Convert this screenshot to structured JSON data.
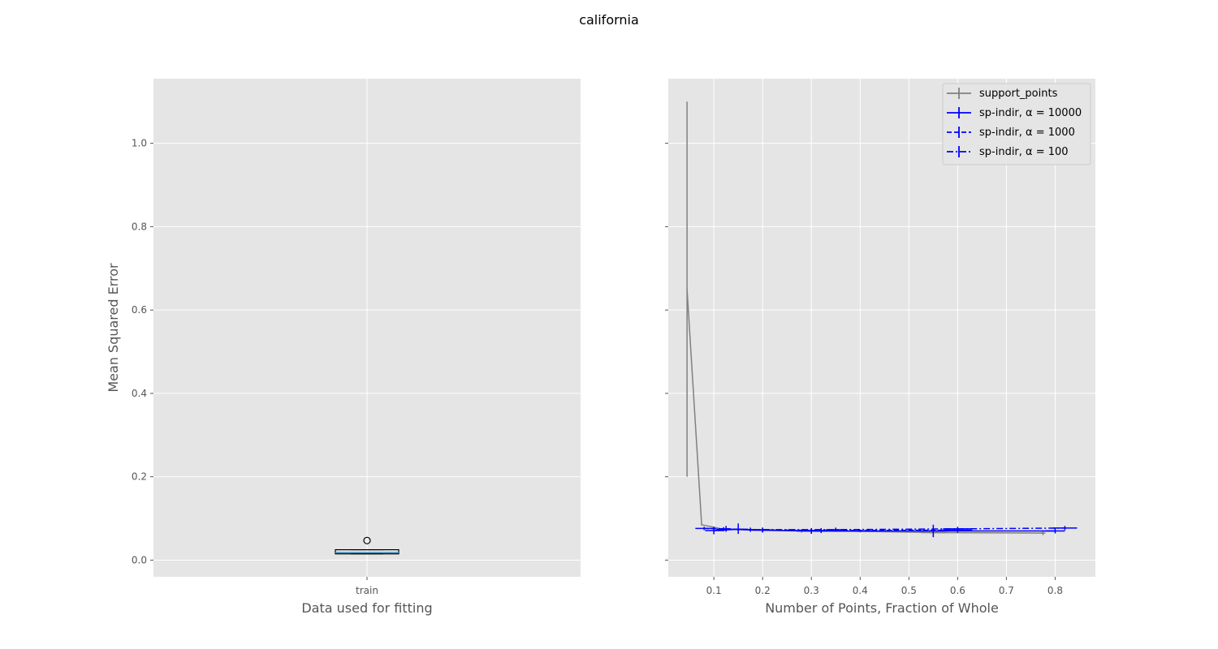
{
  "title": "california",
  "chart_data": [
    {
      "type": "box",
      "xlabel": "Data used for fitting",
      "ylabel": "Mean Squared Error",
      "ylim": [
        -0.04,
        1.155
      ],
      "yticks": [
        0.0,
        0.2,
        0.4,
        0.6,
        0.8,
        1.0
      ],
      "ytick_labels": [
        "0.0",
        "0.2",
        "0.4",
        "0.6",
        "0.8",
        "1.0"
      ],
      "categories": [
        "train"
      ],
      "boxes": [
        {
          "label": "train",
          "whisker_low": 0.015,
          "q1": 0.015,
          "median": 0.018,
          "q3": 0.025,
          "whisker_high": 0.025,
          "outliers": [
            0.047
          ]
        }
      ],
      "grid": true
    },
    {
      "type": "line",
      "xlabel": "Number of Points, Fraction of Whole",
      "xlim": [
        0.0065,
        0.8825
      ],
      "xticks": [
        0.1,
        0.2,
        0.3,
        0.4,
        0.5,
        0.6,
        0.7,
        0.8
      ],
      "xtick_labels": [
        "0.1",
        "0.2",
        "0.3",
        "0.4",
        "0.5",
        "0.6",
        "0.7",
        "0.8"
      ],
      "ylim": [
        -0.04,
        1.155
      ],
      "sharey": true,
      "grid": true,
      "legend_position": "top-right",
      "series": [
        {
          "name": "support_points",
          "color": "#808080",
          "dash": "solid",
          "points": [
            {
              "x": 0.045,
              "y": 0.65,
              "ylo": 0.2,
              "yhi": 1.1,
              "xlo": 0.045,
              "xhi": 0.045
            },
            {
              "x": 0.075,
              "y": 0.085,
              "ylo": 0.083,
              "yhi": 0.087,
              "xlo": 0.075,
              "xhi": 0.075
            },
            {
              "x": 0.12,
              "y": 0.074,
              "ylo": 0.072,
              "yhi": 0.076,
              "xlo": 0.11,
              "xhi": 0.13
            },
            {
              "x": 0.18,
              "y": 0.072,
              "ylo": 0.07,
              "yhi": 0.074,
              "xlo": 0.17,
              "xhi": 0.19
            },
            {
              "x": 0.28,
              "y": 0.07,
              "ylo": 0.066,
              "yhi": 0.074,
              "xlo": 0.27,
              "xhi": 0.29
            },
            {
              "x": 0.4,
              "y": 0.069,
              "ylo": 0.066,
              "yhi": 0.072,
              "xlo": 0.39,
              "xhi": 0.41
            },
            {
              "x": 0.55,
              "y": 0.066,
              "ylo": 0.06,
              "yhi": 0.072,
              "xlo": 0.525,
              "xhi": 0.575
            },
            {
              "x": 0.775,
              "y": 0.065,
              "ylo": 0.06,
              "yhi": 0.07,
              "xlo": 0.77,
              "xhi": 0.78
            }
          ]
        },
        {
          "name": "sp-indir, α = 10000",
          "color": "#0000ff",
          "dash": "solid",
          "points": [
            {
              "x": 0.1,
              "y": 0.071,
              "ylo": 0.062,
              "yhi": 0.08,
              "xlo": 0.082,
              "xhi": 0.118
            },
            {
              "x": 0.15,
              "y": 0.074,
              "ylo": 0.063,
              "yhi": 0.088,
              "xlo": 0.13,
              "xhi": 0.17
            },
            {
              "x": 0.2,
              "y": 0.072,
              "ylo": 0.066,
              "yhi": 0.078,
              "xlo": 0.18,
              "xhi": 0.22
            },
            {
              "x": 0.3,
              "y": 0.07,
              "ylo": 0.063,
              "yhi": 0.077,
              "xlo": 0.27,
              "xhi": 0.33
            },
            {
              "x": 0.55,
              "y": 0.07,
              "ylo": 0.055,
              "yhi": 0.085,
              "xlo": 0.52,
              "xhi": 0.58
            },
            {
              "x": 0.8,
              "y": 0.07,
              "ylo": 0.064,
              "yhi": 0.076,
              "xlo": 0.78,
              "xhi": 0.82
            }
          ]
        },
        {
          "name": "sp-indir, α = 1000",
          "color": "#0000ff",
          "dash": "dashed",
          "points": [
            {
              "x": 0.08,
              "y": 0.076,
              "ylo": 0.072,
              "yhi": 0.08,
              "xlo": 0.062,
              "xhi": 0.098
            },
            {
              "x": 0.125,
              "y": 0.075,
              "ylo": 0.068,
              "yhi": 0.082,
              "xlo": 0.115,
              "xhi": 0.135
            },
            {
              "x": 0.175,
              "y": 0.073,
              "ylo": 0.068,
              "yhi": 0.078,
              "xlo": 0.16,
              "xhi": 0.19
            },
            {
              "x": 0.32,
              "y": 0.071,
              "ylo": 0.065,
              "yhi": 0.077,
              "xlo": 0.3,
              "xhi": 0.34
            },
            {
              "x": 0.6,
              "y": 0.072,
              "ylo": 0.066,
              "yhi": 0.078,
              "xlo": 0.57,
              "xhi": 0.63
            }
          ]
        },
        {
          "name": "sp-indir, α = 100",
          "color": "#0000ff",
          "dash": "dashdot",
          "points": [
            {
              "x": 0.12,
              "y": 0.074,
              "ylo": 0.069,
              "yhi": 0.079,
              "xlo": 0.105,
              "xhi": 0.135
            },
            {
              "x": 0.2,
              "y": 0.073,
              "ylo": 0.068,
              "yhi": 0.078,
              "xlo": 0.185,
              "xhi": 0.215
            },
            {
              "x": 0.35,
              "y": 0.073,
              "ylo": 0.068,
              "yhi": 0.078,
              "xlo": 0.33,
              "xhi": 0.37
            },
            {
              "x": 0.6,
              "y": 0.075,
              "ylo": 0.07,
              "yhi": 0.08,
              "xlo": 0.57,
              "xhi": 0.63
            },
            {
              "x": 0.82,
              "y": 0.077,
              "ylo": 0.072,
              "yhi": 0.082,
              "xlo": 0.795,
              "xhi": 0.845
            }
          ]
        }
      ]
    }
  ]
}
